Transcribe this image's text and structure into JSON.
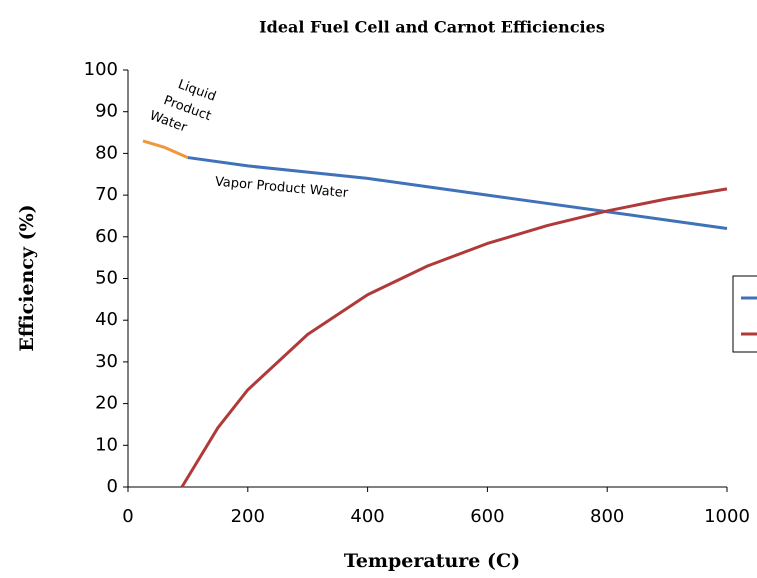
{
  "chart_data": {
    "type": "line",
    "title": "Ideal Fuel Cell and Carnot Efficiencies",
    "xlabel": "Temperature (C)",
    "ylabel": "Efficiency (%)",
    "xlim": [
      0,
      1000
    ],
    "ylim": [
      0,
      100
    ],
    "xticks": [
      0,
      200,
      400,
      600,
      800,
      1000
    ],
    "yticks": [
      0,
      10,
      20,
      30,
      40,
      50,
      60,
      70,
      80,
      90,
      100
    ],
    "series": [
      {
        "color": "#f0963c",
        "x": [
          25,
          60,
          100
        ],
        "values": [
          83,
          81.5,
          79
        ]
      },
      {
        "color": "#3f72b8",
        "x": [
          100,
          200,
          300,
          400,
          500,
          600,
          700,
          800,
          900,
          1000
        ],
        "values": [
          79,
          77,
          75.5,
          74,
          72,
          70,
          68,
          66,
          64,
          62
        ]
      },
      {
        "color": "#b03a3a",
        "x": [
          90,
          150,
          200,
          300,
          400,
          500,
          600,
          700,
          800,
          900,
          1000
        ],
        "values": [
          0,
          14.2,
          23.3,
          36.6,
          46.1,
          53.0,
          58.4,
          62.7,
          66.2,
          69.1,
          71.5
        ]
      }
    ],
    "annotations": [
      "Liquid",
      "Product",
      "Water",
      "Vapor Product Water"
    ]
  }
}
